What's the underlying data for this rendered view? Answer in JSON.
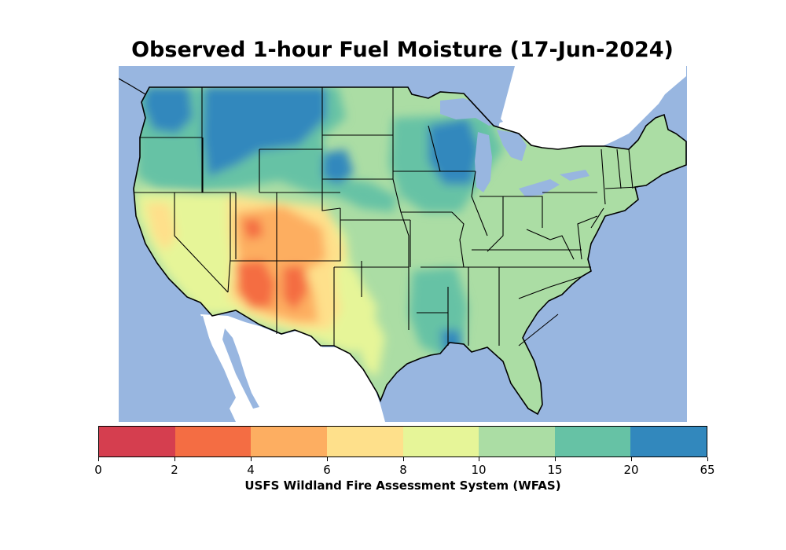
{
  "title": "Observed 1-hour Fuel Moisture (17-Jun-2024)",
  "colorbar": {
    "caption": "USFS Wildland Fire Assessment System (WFAS)",
    "tick_labels": [
      "0",
      "2",
      "4",
      "6",
      "8",
      "10",
      "15",
      "20",
      "65"
    ],
    "bins": [
      {
        "range": "0-2",
        "color": "#d53e4f"
      },
      {
        "range": "2-4",
        "color": "#f46d43"
      },
      {
        "range": "4-6",
        "color": "#fdae61"
      },
      {
        "range": "6-8",
        "color": "#fee08b"
      },
      {
        "range": "8-10",
        "color": "#e6f598"
      },
      {
        "range": "10-15",
        "color": "#abdda4"
      },
      {
        "range": "15-20",
        "color": "#66c2a5"
      },
      {
        "range": "20-65",
        "color": "#3288bd"
      }
    ]
  },
  "map": {
    "region": "Contiguous United States",
    "water_color": "#98b6e0",
    "land_outside_color": "#ffffff",
    "boundary_color": "#000000"
  }
}
